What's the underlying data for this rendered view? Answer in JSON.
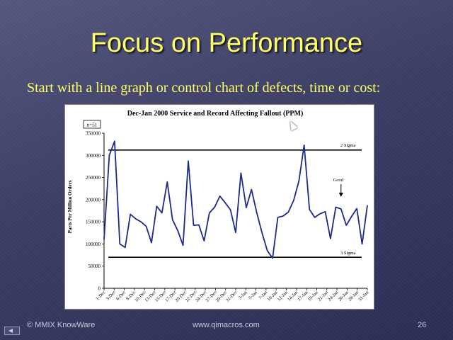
{
  "slide": {
    "title": "Focus on Performance",
    "subtitle": "Start with a line graph or control chart of defects, time or cost:",
    "footer_left": "© MMIX KnowWare",
    "footer_center": "www.qimacros.com",
    "footer_right": "26",
    "nav_icon": "previous-slide-icon"
  },
  "chart_data": {
    "type": "line",
    "title": "Dec-Jan 2000 Service and Record Affecting Fallout (PPM)",
    "ylabel": "Parts Per Million Orders",
    "xlabel": "",
    "n_label": "n=51",
    "ylim": [
      0,
      350000
    ],
    "y_ticks": [
      "0",
      "50000",
      "100000",
      "150000",
      "200000",
      "250000",
      "300000",
      "350000"
    ],
    "x_tick_labels": [
      "1-Dec",
      "3-Dec",
      "6-Dec",
      "8-Dec",
      "10-Dec",
      "13-Dec",
      "15-Dec",
      "17-Dec",
      "20-Dec",
      "22-Dec",
      "24-Dec",
      "27-Dec",
      "29-Dec",
      "31-Dec",
      "3-Jan",
      "5-Jan",
      "7-Jan",
      "10-Jan",
      "12-Jan",
      "14-Jan",
      "17-Jan",
      "19-Jan",
      "21-Jan",
      "24-Jan",
      "26-Jan",
      "28-Jan",
      "31-Jan"
    ],
    "values": [
      110000,
      300000,
      332000,
      100000,
      92000,
      167000,
      157000,
      150000,
      140000,
      103000,
      185000,
      170000,
      240000,
      155000,
      130000,
      97000,
      287000,
      142000,
      143000,
      107000,
      170000,
      183000,
      208000,
      193000,
      177000,
      126000,
      260000,
      182000,
      223000,
      170000,
      125000,
      85000,
      68000,
      160000,
      163000,
      172000,
      198000,
      242000,
      323000,
      178000,
      160000,
      168000,
      173000,
      112000,
      183000,
      179000,
      142000,
      162000,
      180000,
      100000,
      187000
    ],
    "control_limits": [
      {
        "label": "2 Sigma",
        "value": 312000
      },
      {
        "label": "3 Sigma",
        "value": 70000
      }
    ],
    "annotation": {
      "label": "Good",
      "index": 45
    },
    "color": "#1c2a8c"
  }
}
